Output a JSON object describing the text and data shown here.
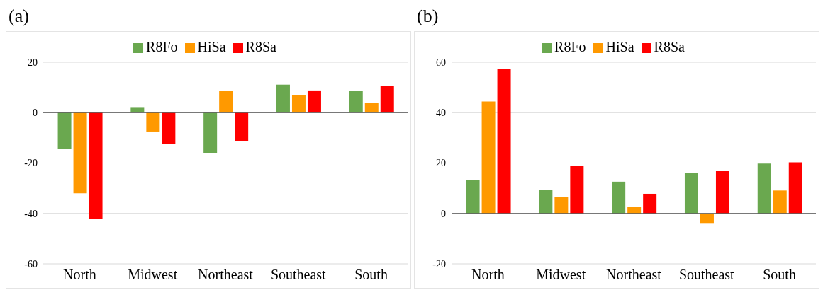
{
  "chart_data": [
    {
      "type": "bar",
      "title": "(a)",
      "categories": [
        "North",
        "Midwest",
        "Northeast",
        "Southeast",
        "South"
      ],
      "series": [
        {
          "name": "R8Fo",
          "color": "#6aa84f",
          "values": [
            -14.3,
            2.2,
            -16.1,
            11.1,
            8.6
          ]
        },
        {
          "name": "HiSa",
          "color": "#ff9900",
          "values": [
            -32,
            -7.5,
            8.6,
            7,
            3.8
          ]
        },
        {
          "name": "R8Sa",
          "color": "#ff0000",
          "values": [
            -42.3,
            -12.4,
            -11.2,
            8.8,
            10.6
          ]
        }
      ],
      "ylim": [
        -60,
        20
      ],
      "yticks": [
        -60,
        -40,
        -20,
        0,
        20
      ],
      "grid": "y",
      "legend": "top"
    },
    {
      "type": "bar",
      "title": "(b)",
      "categories": [
        "North",
        "Midwest",
        "Northeast",
        "Southeast",
        "South"
      ],
      "series": [
        {
          "name": "R8Fo",
          "color": "#6aa84f",
          "values": [
            13.2,
            9.4,
            12.6,
            16,
            19.8
          ]
        },
        {
          "name": "HiSa",
          "color": "#ff9900",
          "values": [
            44.4,
            6.4,
            2.5,
            -3.8,
            9.1
          ]
        },
        {
          "name": "R8Sa",
          "color": "#ff0000",
          "values": [
            57.4,
            18.9,
            7.8,
            16.8,
            20.3
          ]
        }
      ],
      "ylim": [
        -20,
        60
      ],
      "yticks": [
        -20,
        0,
        20,
        40,
        60
      ],
      "grid": "y",
      "legend": "top"
    }
  ]
}
